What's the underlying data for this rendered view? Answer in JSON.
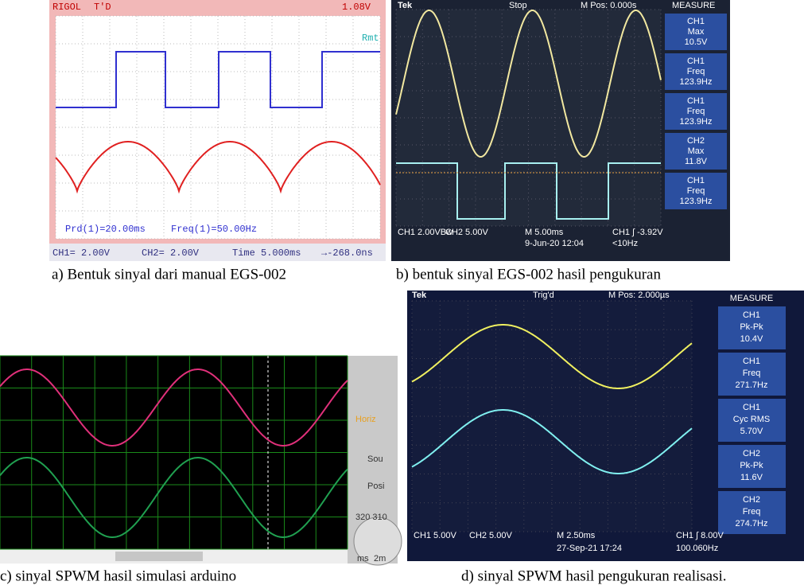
{
  "panel_a": {
    "caption": "a) Bentuk sinyal dari manual EGS-002",
    "header": [
      "RIGOL",
      "T'D",
      "1.08V"
    ],
    "mode": "Rmt",
    "readouts": [
      "Prd(1)=20.00ms",
      "Freq(1)=50.00Hz"
    ],
    "footer": [
      "CH1= 2.00V",
      "CH2= 2.00V",
      "Time 5.000ms",
      "→-268.0ns"
    ]
  },
  "panel_b": {
    "caption": "b) bentuk sinyal EGS-002 hasil pengukuran",
    "header": [
      "Tek",
      "Stop",
      "M Pos: 0.000s"
    ],
    "measure_title": "MEASURE",
    "measures": [
      [
        "CH1",
        "Max",
        "10.5V"
      ],
      [
        "CH1",
        "Freq",
        "123.9Hz"
      ],
      [
        "CH1",
        "Freq",
        "123.9Hz"
      ],
      [
        "CH2",
        "Max",
        "11.8V"
      ],
      [
        "CH1",
        "Freq",
        "123.9Hz"
      ]
    ],
    "footer": [
      "CH1 2.00VBw",
      "CH2 5.00V",
      "M 5.00ms",
      "9-Jun-20 12:04",
      "CH1 ∫ -3.92V",
      "<10Hz"
    ]
  },
  "panel_c": {
    "caption": "c) sinyal SPWM hasil simulasi arduino",
    "controls": [
      "Horiz",
      "Sou",
      "Posi",
      "320 310",
      "2m",
      "ms"
    ]
  },
  "panel_d": {
    "caption": "d) sinyal SPWM hasil pengukuran realisasi.",
    "header": [
      "Tek",
      "Trig'd",
      "M Pos: 2.000µs"
    ],
    "measure_title": "MEASURE",
    "measures": [
      [
        "CH1",
        "Pk-Pk",
        "10.4V"
      ],
      [
        "CH1",
        "Freq",
        "271.7Hz"
      ],
      [
        "CH1",
        "Cyc RMS",
        "5.70V"
      ],
      [
        "CH2",
        "Pk-Pk",
        "11.6V"
      ],
      [
        "CH2",
        "Freq",
        "274.7Hz"
      ]
    ],
    "footer": [
      "CH1 5.00V",
      "CH2 5.00V",
      "M 2.50ms",
      "27-Sep-21 17:24",
      "CH1 ∫ 8.00V",
      "100.060Hz"
    ]
  }
}
